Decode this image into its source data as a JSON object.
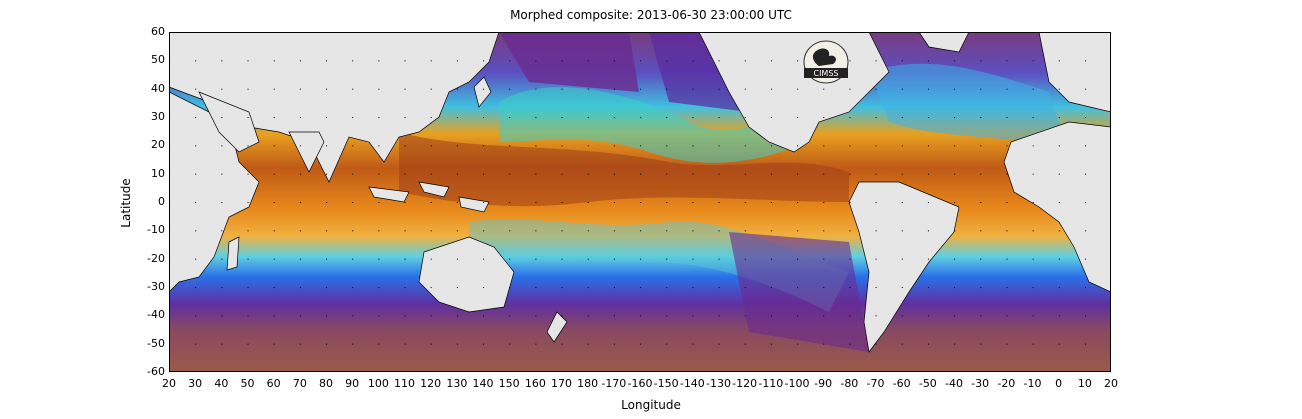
{
  "title": "Morphed composite: 2013-06-30 23:00:00 UTC",
  "xlabel": "Longitude",
  "ylabel": "Latitude",
  "xticks": [
    "20",
    "30",
    "40",
    "50",
    "60",
    "70",
    "80",
    "90",
    "100",
    "110",
    "120",
    "130",
    "140",
    "150",
    "160",
    "170",
    "180",
    "-170",
    "-160",
    "-150",
    "-140",
    "-130",
    "-120",
    "-110",
    "-100",
    "-90",
    "-80",
    "-70",
    "-60",
    "-50",
    "-40",
    "-30",
    "-20",
    "-10",
    "0",
    "10",
    "20"
  ],
  "yticks": [
    "60",
    "50",
    "40",
    "30",
    "20",
    "10",
    "0",
    "-10",
    "-20",
    "-30",
    "-40",
    "-50",
    "-60"
  ],
  "logo_text": "CIMSS",
  "colors": {
    "ocean_dry": "#8a4a8c",
    "ocean_moist": "#2f7fe8",
    "ocean_wet": "#f0a020",
    "ocean_very_wet": "#a0401a",
    "land": "#e6e6e6",
    "coast": "#000000"
  }
}
